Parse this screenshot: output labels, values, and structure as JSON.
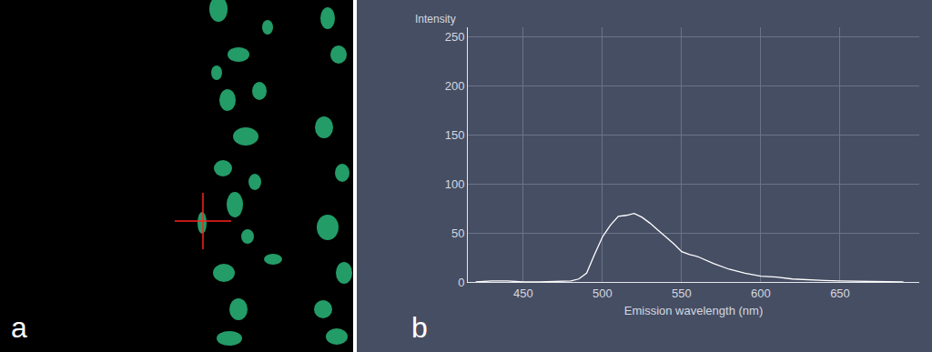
{
  "chart_data": {
    "type": "line",
    "x_label": "Emission wavelength (nm)",
    "y_label": "Intensity",
    "x": [
      420,
      430,
      440,
      450,
      460,
      470,
      480,
      485,
      490,
      495,
      500,
      505,
      510,
      515,
      520,
      525,
      530,
      535,
      540,
      545,
      550,
      555,
      560,
      570,
      580,
      590,
      600,
      610,
      620,
      630,
      640,
      650,
      660,
      670,
      680,
      690
    ],
    "values": [
      0,
      1,
      1,
      0,
      0,
      0.5,
      1,
      3,
      9,
      28,
      46,
      58,
      67,
      68,
      70,
      66,
      60,
      53,
      46,
      39,
      31,
      28,
      26,
      19,
      13,
      9,
      6,
      5,
      3,
      2,
      1.5,
      1,
      0.5,
      0.5,
      0.3,
      0.2
    ],
    "color": "#ffffff",
    "xlim": [
      415,
      700
    ],
    "xticks": [
      450,
      500,
      550,
      600,
      650
    ],
    "ylim": [
      0,
      260
    ],
    "yticks": [
      0,
      50,
      100,
      150,
      200,
      250
    ],
    "grid": true
  },
  "panel_labels": [
    "a",
    "b"
  ]
}
